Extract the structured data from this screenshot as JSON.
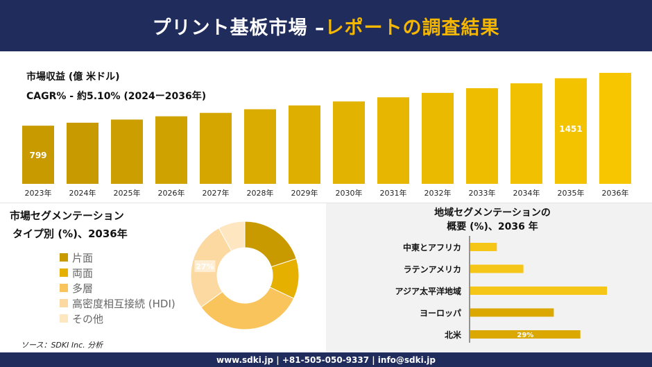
{
  "header": {
    "title_main": "プリント基板市場 –",
    "title_accent": "レポートの調査結果"
  },
  "revenue": {
    "label": "市場収益 (億 米ドル)",
    "cagr": "CAGR% - 約5.10% (2024ー2036年)"
  },
  "chart_data": [
    {
      "type": "bar",
      "categories": [
        "2023年",
        "2024年",
        "2025年",
        "2026年",
        "2027年",
        "2028年",
        "2029年",
        "2030年",
        "2031年",
        "2032年",
        "2033年",
        "2034年",
        "2035年",
        "2036年"
      ],
      "values": [
        799,
        840,
        883,
        928,
        975,
        1025,
        1077,
        1132,
        1189,
        1250,
        1314,
        1381,
        1451,
        1525
      ],
      "data_labels": [
        {
          "index": 0,
          "text": "799"
        },
        {
          "index": 12,
          "text": "1451"
        }
      ],
      "colors": [
        "#c89a00",
        "#c89a00",
        "#cc9e00",
        "#d0a200",
        "#d5a600",
        "#daab00",
        "#deaf00",
        "#e2b300",
        "#e6b600",
        "#eaba00",
        "#eebd00",
        "#f1c000",
        "#f4c300",
        "#f7c600"
      ]
    },
    {
      "type": "pie",
      "title": "市場セグメンテーション\nタイプ別 (%)、2036年",
      "labels": [
        "片面",
        "両面",
        "多層",
        "高密度相互接続 (HDI)",
        "その他"
      ],
      "values": [
        20,
        12,
        33,
        27,
        8
      ],
      "data_labels": [
        {
          "index": 3,
          "text": "27%"
        }
      ],
      "colors": [
        "#c89a00",
        "#e6b000",
        "#f9c45c",
        "#fbd9a1",
        "#fde6c0"
      ]
    },
    {
      "type": "bar",
      "orientation": "horizontal",
      "title": "地域セグメンテーションの\n概要 (%)、2036 年",
      "categories": [
        "中東とアフリカ",
        "ラテンアメリカ",
        "アジア太平洋地域",
        "ヨーロッパ",
        "北米"
      ],
      "values": [
        7,
        14,
        36,
        22,
        29
      ],
      "data_labels": [
        {
          "index": 4,
          "text": "29%"
        }
      ],
      "colors": [
        "#f5c518",
        "#f5c518",
        "#f5c518",
        "#daa800",
        "#daa800"
      ]
    }
  ],
  "segment": {
    "title_line1": "市場セグメンテーション",
    "title_line2": "タイプ別 (%)、2036年"
  },
  "region": {
    "title_line1": "地域セグメンテーションの",
    "title_line2": "概要 (%)、2036 年"
  },
  "source": "ソース：SDKI Inc. 分析",
  "footer": "www.sdki.jp | +81-505-050-9337 | info@sdki.jp"
}
